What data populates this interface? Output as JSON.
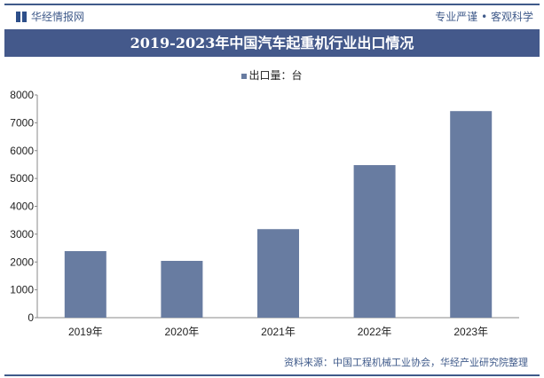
{
  "header": {
    "brand": "华经情报网",
    "slogan": "专业严谨 • 客观科学"
  },
  "chart_data": {
    "type": "bar",
    "title": "2019-2023年中国汽车起重机行业出口情况",
    "legend": [
      "出口量：台"
    ],
    "legend_placement": "top",
    "categories": [
      "2019年",
      "2020年",
      "2021年",
      "2022年",
      "2023年"
    ],
    "series": [
      {
        "name": "出口量：台",
        "values": [
          2390,
          2040,
          3180,
          5480,
          7420
        ],
        "color": "#687ca1"
      }
    ],
    "ylim": [
      0,
      8000
    ],
    "yticks": [
      "0",
      "1000",
      "2000",
      "3000",
      "4000",
      "5000",
      "6000",
      "7000",
      "8000"
    ],
    "grid": false
  },
  "footer": {
    "source": "资料来源：中国工程机械工业协会，华经产业研究院整理"
  }
}
